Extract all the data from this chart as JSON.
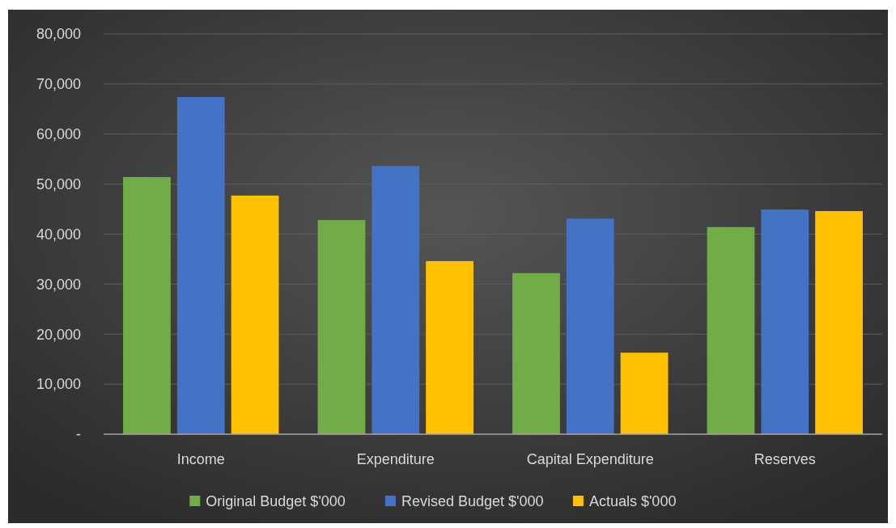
{
  "chart_data": {
    "type": "bar",
    "categories": [
      "Income",
      "Expenditure",
      "Capital Expenditure",
      "Reserves"
    ],
    "series": [
      {
        "name": "Original Budget $'000",
        "color": "#70ad47",
        "values": [
          51400,
          42800,
          32200,
          41400
        ]
      },
      {
        "name": "Revised Budget $'000",
        "color": "#4472c4",
        "values": [
          67400,
          53600,
          43100,
          44900
        ]
      },
      {
        "name": "Actuals $'000",
        "color": "#ffc000",
        "values": [
          47700,
          34600,
          16300,
          44600
        ]
      }
    ],
    "ylim": [
      0,
      80000
    ],
    "yticks": [
      {
        "value": 0,
        "label": "-"
      },
      {
        "value": 10000,
        "label": "10,000"
      },
      {
        "value": 20000,
        "label": "20,000"
      },
      {
        "value": 30000,
        "label": "30,000"
      },
      {
        "value": 40000,
        "label": "40,000"
      },
      {
        "value": 50000,
        "label": "50,000"
      },
      {
        "value": 60000,
        "label": "60,000"
      },
      {
        "value": 70000,
        "label": "70,000"
      },
      {
        "value": 80000,
        "label": "80,000"
      }
    ],
    "grid": "y",
    "legend": "bottom"
  }
}
